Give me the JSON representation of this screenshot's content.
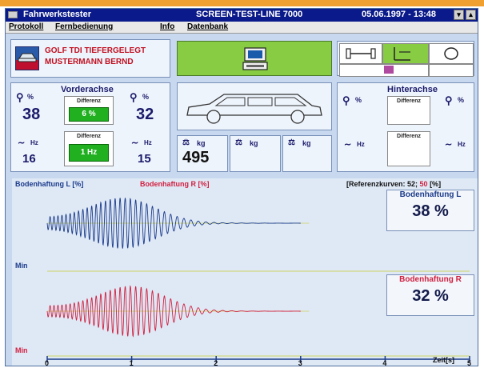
{
  "window": {
    "app_title": "Fahrwerkstester",
    "center_title": "SCREEN-TEST-LINE 7000",
    "datetime": "05.06.1997 - 13:48"
  },
  "menu": [
    "Protokoll",
    "Fernbedienung",
    "Info",
    "Datenbank"
  ],
  "vehicle": {
    "model": "GOLF TDI TIEFERGELEGT",
    "owner": "MUSTERMANN BERND"
  },
  "front_axle": {
    "title": "Vorderachse",
    "left_percent": "38",
    "right_percent": "32",
    "percent_unit": "%",
    "diff_label": "Differenz",
    "diff_percent": "6 %",
    "left_hz": "16",
    "right_hz": "15",
    "hz_unit": "Hz",
    "diff_hz": "1 Hz"
  },
  "rear_axle": {
    "title": "Hinterachse",
    "percent_unit": "%",
    "diff_label": "Differenz",
    "hz_unit": "Hz"
  },
  "weights": {
    "unit": "kg",
    "front": "495",
    "rear": "",
    "total": ""
  },
  "colors": {
    "left_wave": "#1a3a8a",
    "right_wave": "#d02040",
    "green": "#20b020",
    "reference_line": "#d0d880"
  },
  "chart": {
    "legend_left": "Bodenhaftung L [%]",
    "legend_right": "Bodenhaftung R [%]",
    "reference_prefix": "[Referenzkurven: ",
    "reference_left": "52",
    "reference_sep": "; ",
    "reference_right": "50",
    "reference_suffix": " [%]",
    "min_label": "Min",
    "x_unit_label": "Zeit[s]"
  },
  "result_left": {
    "label": "Bodenhaftung L",
    "value": "38 %"
  },
  "result_right": {
    "label": "Bodenhaftung R",
    "value": "32 %"
  },
  "chart_data": [
    {
      "type": "line",
      "series": [
        {
          "name": "Bodenhaftung L [%]",
          "result": 38,
          "color": "#1a3a8a"
        }
      ],
      "reference_value": 52,
      "xlabel": "Zeit[s]",
      "xlim": [
        0,
        5
      ],
      "x_ticks": [
        "0",
        "1",
        "2",
        "3",
        "4",
        "5"
      ]
    },
    {
      "type": "line",
      "series": [
        {
          "name": "Bodenhaftung R [%]",
          "result": 32,
          "color": "#d02040"
        }
      ],
      "reference_value": 50,
      "xlabel": "Zeit[s]",
      "xlim": [
        0,
        5
      ],
      "x_ticks": [
        "0",
        "1",
        "2",
        "3",
        "4",
        "5"
      ]
    }
  ]
}
